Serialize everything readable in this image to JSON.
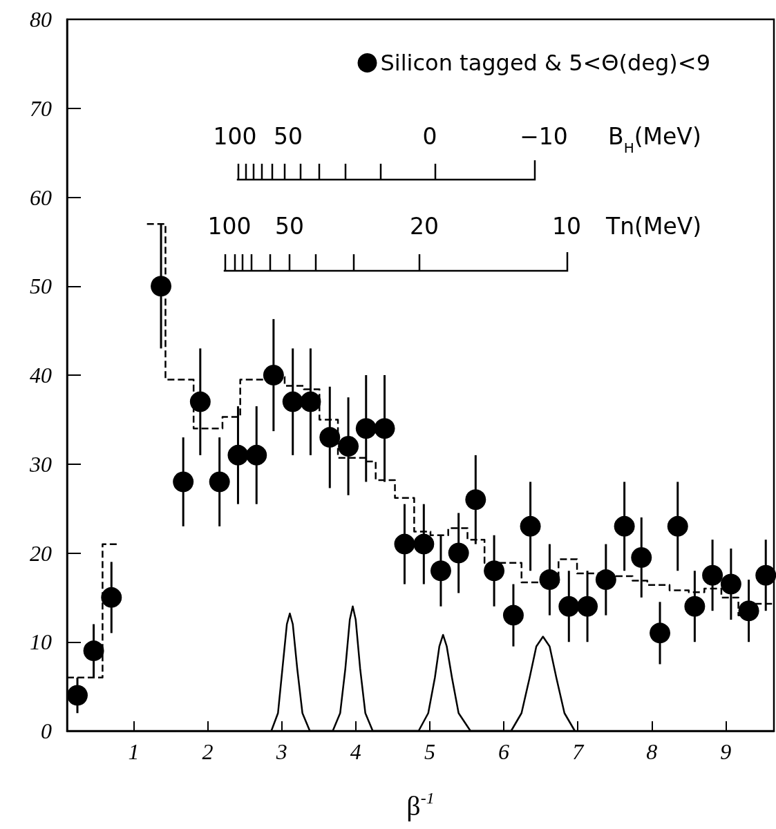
{
  "chart_data": {
    "type": "scatter",
    "xlabel": "β$^{-1}$",
    "xlim": [
      0.1,
      9.65
    ],
    "xticks": [
      1,
      2,
      3,
      4,
      5,
      6,
      7,
      8,
      9
    ],
    "ylim": [
      0,
      80
    ],
    "yticks": [
      0,
      10,
      20,
      30,
      40,
      50,
      60,
      70,
      80
    ],
    "grid": false,
    "legend": "top right",
    "marker": "circle",
    "annotations": [
      "100",
      "50",
      "0",
      "−10",
      "B$_{H}$(MeV)",
      "100",
      "50",
      "20",
      "10",
      "Tn(MeV)"
    ],
    "series": [
      {
        "name": "Silicon tagged & 5<Θ(deg)<9",
        "color": "#000000",
        "x": [
          0.24,
          0.46,
          0.7,
          1.37,
          1.67,
          1.9,
          2.16,
          2.41,
          2.66,
          2.89,
          3.15,
          3.39,
          3.65,
          3.9,
          4.14,
          4.39,
          4.66,
          4.92,
          5.15,
          5.39,
          5.62,
          5.87,
          6.13,
          6.36,
          6.62,
          6.88,
          7.13,
          7.38,
          7.63,
          7.86,
          8.11,
          8.35,
          8.58,
          8.82,
          9.07,
          9.31,
          9.54
        ],
        "values": [
          4,
          9,
          15,
          50,
          28,
          37,
          28,
          31,
          31,
          40,
          37,
          37,
          33,
          32,
          34,
          34,
          21,
          21,
          18,
          20,
          26,
          18,
          13,
          23,
          17,
          14,
          14,
          17,
          23,
          19.5,
          11,
          23,
          14,
          17.5,
          16.5,
          13.5,
          17.5
        ],
        "errors": [
          2,
          3,
          4,
          7,
          5,
          6,
          5,
          5.5,
          5.5,
          6.3,
          6,
          6,
          5.7,
          5.5,
          6,
          6,
          4.5,
          4.5,
          4,
          4.5,
          5,
          4,
          3.5,
          5,
          4,
          4,
          4,
          4,
          5,
          4.5,
          3.5,
          5,
          4,
          4,
          4,
          3.5,
          4
        ]
      },
      {
        "type": "step",
        "color": "#000000",
        "marker": "none",
        "line_style": "dashed",
        "x": [
          0.1,
          0.58,
          0.8
        ],
        "values": [
          6,
          21,
          21
        ]
      },
      {
        "type": "step",
        "color": "#000000",
        "marker": "none",
        "line_style": "dashed",
        "x": [
          1.18,
          1.43,
          1.81,
          2.2,
          2.44,
          2.75,
          3.04,
          3.3,
          3.51,
          3.76,
          4.13,
          4.27,
          4.53,
          4.79,
          5.01,
          5.25,
          5.51,
          5.74,
          6.24,
          6.74,
          6.99,
          7.47,
          7.74,
          7.94,
          8.24,
          8.5,
          8.71,
          8.94,
          9.17,
          9.4,
          9.63
        ],
        "values": [
          57,
          39.5,
          34,
          35.3,
          39.5,
          39.8,
          38.8,
          38.4,
          35,
          30.7,
          30.3,
          28.2,
          26.2,
          22.4,
          22,
          22.8,
          21.5,
          18.9,
          16.7,
          19.3,
          17.7,
          17.4,
          16.9,
          16.4,
          15.8,
          15.6,
          16,
          15,
          13,
          14.3,
          14.3
        ]
      },
      {
        "type": "line",
        "color": "#000000",
        "marker": "none",
        "line_style": "solid",
        "x": [
          2.86,
          2.95,
          3.01,
          3.07,
          3.11,
          3.15,
          3.21,
          3.28,
          3.38,
          3.69,
          3.79,
          3.86,
          3.92,
          3.96,
          4.0,
          4.06,
          4.13,
          4.23,
          4.85,
          4.98,
          5.07,
          5.13,
          5.18,
          5.23,
          5.3,
          5.39,
          5.55,
          6.1,
          6.24,
          6.35,
          6.44,
          6.53,
          6.62,
          6.71,
          6.82,
          6.96
        ],
        "values": [
          0,
          2,
          7,
          12,
          13.2,
          12,
          7,
          2,
          0,
          0,
          2,
          7,
          12.5,
          14,
          12.5,
          7,
          2,
          0,
          0,
          2,
          6,
          9.5,
          10.8,
          9.5,
          6,
          2,
          0,
          0,
          2,
          6,
          9.5,
          10.6,
          9.5,
          6,
          2,
          0
        ]
      }
    ]
  }
}
